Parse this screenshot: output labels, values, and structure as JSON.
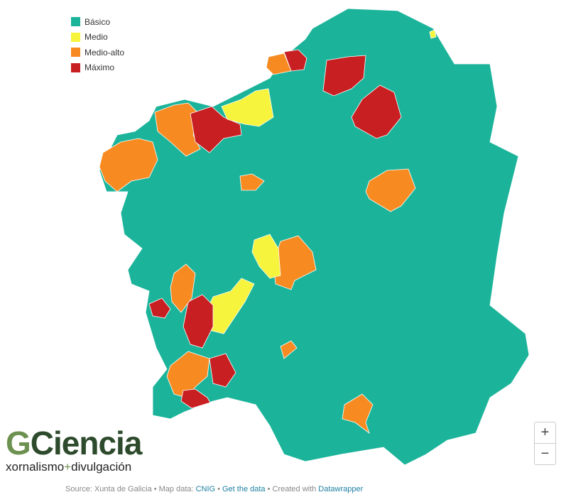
{
  "legend": [
    {
      "label": "Básico",
      "color": "#1bb49a"
    },
    {
      "label": "Medio",
      "color": "#f6f43c"
    },
    {
      "label": "Medio-alto",
      "color": "#f78b22"
    },
    {
      "label": "Máximo",
      "color": "#c81f22"
    }
  ],
  "logo": {
    "mark": "G",
    "name": "Ciencia",
    "tagline_start": "xornalismo",
    "tagline_sep": "+",
    "tagline_end": "divulgación"
  },
  "zoom": {
    "in": "+",
    "out": "−"
  },
  "footer": {
    "source": "Source: Xunta de Galicia • Map data:",
    "map_link": "CNIG",
    "sep": "•",
    "data_link": "Get the data",
    "created": "• Created with",
    "tool_link": "Datawrapper"
  }
}
